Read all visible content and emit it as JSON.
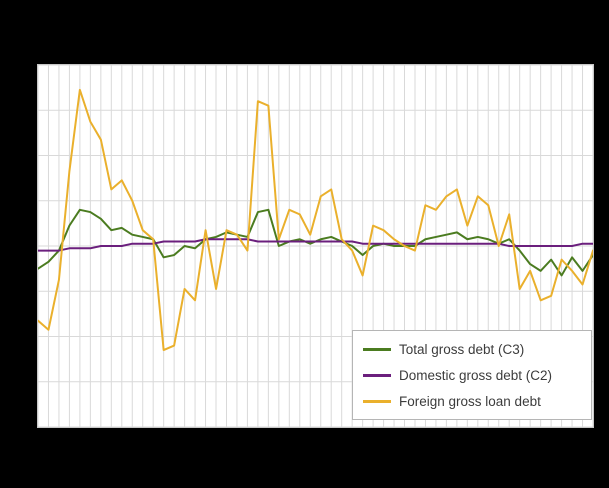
{
  "chart_data": {
    "type": "line",
    "title": "",
    "xlabel": "",
    "ylabel": "",
    "ylim": [
      -80,
      80
    ],
    "y_grid_step": 20,
    "x_count": 54,
    "grid": "on",
    "legend_position": "bottom-right",
    "colors": {
      "background_outer": "#000000",
      "background_plot": "#ffffff",
      "gridline": "#d9d9d9",
      "legend_border": "#b5b5b5",
      "legend_text": "#3c3c3c"
    },
    "series": [
      {
        "name": "Total gross debt (C3)",
        "color": "#4b7c20",
        "values": [
          -10,
          -7,
          -2,
          9,
          16,
          15,
          12,
          7,
          8,
          5,
          4,
          3,
          -5,
          -4,
          0,
          -1,
          3,
          4,
          6,
          5,
          4,
          15,
          16,
          0,
          2,
          3,
          1,
          3,
          4,
          2,
          0,
          -4,
          0,
          1,
          0,
          0,
          0,
          3,
          4,
          5,
          6,
          3,
          4,
          3,
          1,
          3,
          -2,
          -8,
          -11,
          -6,
          -13,
          -5,
          -11,
          -4
        ]
      },
      {
        "name": "Domestic gross debt (C2)",
        "color": "#6b1f7d",
        "values": [
          -2,
          -2,
          -2,
          -1,
          -1,
          -1,
          0,
          0,
          0,
          1,
          1,
          1,
          2,
          2,
          2,
          2,
          3,
          3,
          3,
          3,
          3,
          2,
          2,
          2,
          2,
          2,
          2,
          2,
          2,
          2,
          2,
          1,
          1,
          1,
          1,
          1,
          1,
          1,
          1,
          1,
          1,
          1,
          1,
          1,
          1,
          0,
          0,
          0,
          0,
          0,
          0,
          0,
          1,
          1
        ]
      },
      {
        "name": "Foreign gross loan debt",
        "color": "#eab02c",
        "values": [
          -33,
          -37,
          -15,
          33,
          69,
          55,
          47,
          25,
          29,
          20,
          7,
          3,
          -46,
          -44,
          -19,
          -24,
          7,
          -19,
          7,
          5,
          -2,
          64,
          62,
          3,
          16,
          14,
          5,
          22,
          25,
          3,
          -2,
          -13,
          9,
          7,
          3,
          0,
          -2,
          18,
          16,
          22,
          25,
          9,
          22,
          18,
          0,
          14,
          -19,
          -11,
          -24,
          -22,
          -6,
          -11,
          -17,
          -2
        ]
      }
    ]
  },
  "legend": {
    "items": [
      {
        "label": "Total gross debt (C3)"
      },
      {
        "label": "Domestic gross debt (C2)"
      },
      {
        "label": "Foreign gross loan debt"
      }
    ]
  }
}
